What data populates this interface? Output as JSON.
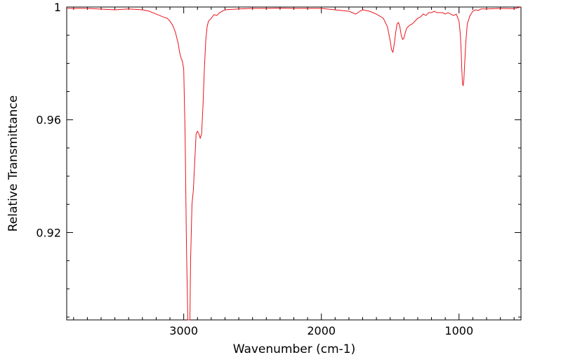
{
  "chart_data": {
    "type": "line",
    "title": "",
    "xlabel": "Wavenumber (cm-1)",
    "ylabel": "Relative Transmittance",
    "xlim": [
      3850,
      550
    ],
    "ylim": [
      0.889,
      1.0
    ],
    "x_reversed": true,
    "grid": false,
    "x_ticks": [
      3000,
      2000,
      1000
    ],
    "x_tick_labels": [
      "3000",
      "2000",
      "1000"
    ],
    "y_ticks": [
      0.92,
      0.96,
      1.0
    ],
    "y_tick_labels": [
      "0.92",
      "0.96",
      "1"
    ],
    "series": [
      {
        "color": "#e8141b",
        "x": [
          3850,
          3700,
          3500,
          3400,
          3300,
          3250,
          3200,
          3150,
          3120,
          3100,
          3080,
          3060,
          3040,
          3030,
          3020,
          3010,
          3000,
          2990,
          2980,
          2970,
          2965,
          2960,
          2955,
          2950,
          2940,
          2930,
          2920,
          2910,
          2900,
          2890,
          2880,
          2870,
          2860,
          2850,
          2840,
          2830,
          2820,
          2800,
          2780,
          2760,
          2740,
          2720,
          2700,
          2600,
          2500,
          2400,
          2300,
          2200,
          2100,
          2000,
          1900,
          1800,
          1750,
          1720,
          1700,
          1650,
          1600,
          1550,
          1520,
          1500,
          1490,
          1480,
          1470,
          1460,
          1450,
          1440,
          1430,
          1420,
          1410,
          1400,
          1390,
          1380,
          1370,
          1360,
          1340,
          1320,
          1300,
          1280,
          1260,
          1240,
          1220,
          1200,
          1180,
          1160,
          1140,
          1120,
          1100,
          1080,
          1060,
          1040,
          1020,
          1000,
          990,
          985,
          980,
          975,
          970,
          965,
          960,
          950,
          940,
          920,
          900,
          880,
          860,
          840,
          800,
          700,
          600,
          550
        ],
        "y": [
          0.9995,
          0.9995,
          0.999,
          0.9993,
          0.999,
          0.9985,
          0.9975,
          0.9965,
          0.996,
          0.995,
          0.9935,
          0.991,
          0.987,
          0.984,
          0.982,
          0.9808,
          0.978,
          0.955,
          0.915,
          0.889,
          0.889,
          0.889,
          0.889,
          0.91,
          0.93,
          0.935,
          0.945,
          0.955,
          0.9559,
          0.955,
          0.9535,
          0.955,
          0.965,
          0.978,
          0.988,
          0.993,
          0.995,
          0.996,
          0.9973,
          0.997,
          0.998,
          0.9985,
          0.999,
          0.9993,
          0.9995,
          0.9995,
          0.9996,
          0.9995,
          0.9995,
          0.9995,
          0.999,
          0.9985,
          0.9975,
          0.9985,
          0.999,
          0.9985,
          0.9975,
          0.996,
          0.993,
          0.988,
          0.9848,
          0.984,
          0.987,
          0.991,
          0.994,
          0.9945,
          0.993,
          0.99,
          0.9885,
          0.989,
          0.991,
          0.9925,
          0.993,
          0.9935,
          0.994,
          0.995,
          0.996,
          0.9965,
          0.9975,
          0.997,
          0.998,
          0.998,
          0.9985,
          0.998,
          0.998,
          0.998,
          0.9975,
          0.998,
          0.9975,
          0.997,
          0.9975,
          0.995,
          0.99,
          0.985,
          0.978,
          0.973,
          0.972,
          0.974,
          0.979,
          0.988,
          0.994,
          0.997,
          0.9985,
          0.999,
          0.9988,
          0.9993,
          0.9993,
          0.9995,
          0.9994,
          1.0
        ]
      }
    ]
  }
}
